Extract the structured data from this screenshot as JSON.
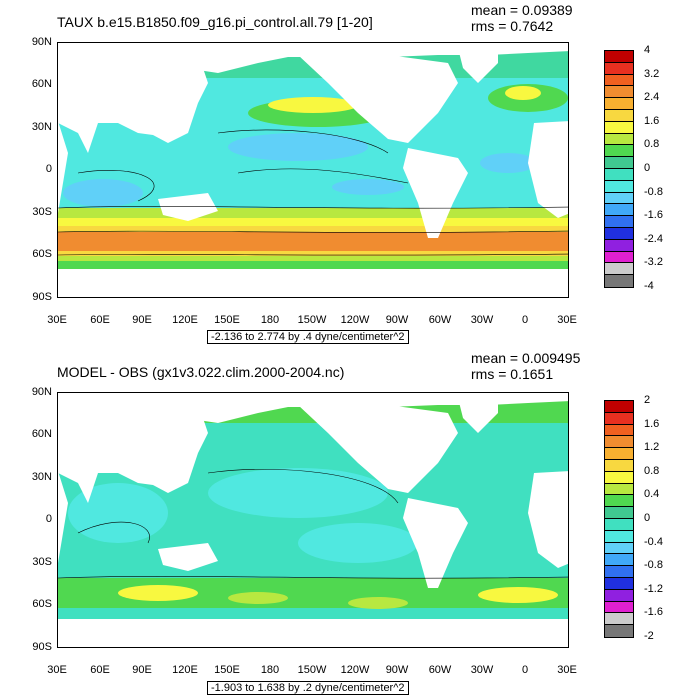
{
  "panels": [
    {
      "title": "TAUX b.e15.B1850.f09_g16.pi_control.all.79 [1-20]",
      "mean": "mean = 0.09389",
      "rms": "rms = 0.7642",
      "caption": "-2.136 to 2.774 by .4 dyne/centimeter^2",
      "colorbar_labels": [
        "4",
        "3.2",
        "2.4",
        "1.6",
        "0.8",
        "0",
        "-0.8",
        "-1.6",
        "-2.4",
        "-3.2",
        "-4"
      ],
      "colorbar_colors": [
        "#c00000",
        "#e83020",
        "#f06020",
        "#f08c30",
        "#f8b030",
        "#f8d840",
        "#f8f840",
        "#b8e840",
        "#50d850",
        "#40c890",
        "#40e0c0",
        "#50e8e0",
        "#60d0f8",
        "#40a8f8",
        "#3070f0",
        "#2030e0",
        "#9020e0",
        "#e020d0",
        "#cccccc",
        "#777777"
      ]
    },
    {
      "title": "MODEL - OBS (gx1v3.022.clim.2000-2004.nc)",
      "mean": "mean = 0.009495",
      "rms": "rms = 0.1651",
      "caption": "-1.903 to 1.638 by .2 dyne/centimeter^2",
      "colorbar_labels": [
        "2",
        "1.6",
        "1.2",
        "0.8",
        "0.4",
        "0",
        "-0.4",
        "-0.8",
        "-1.2",
        "-1.6",
        "-2"
      ],
      "colorbar_colors": [
        "#c00000",
        "#e83020",
        "#f06020",
        "#f08c30",
        "#f8b030",
        "#f8d840",
        "#f8f840",
        "#b8e840",
        "#50d850",
        "#40c890",
        "#40e0c0",
        "#50e8e0",
        "#60d0f8",
        "#40a8f8",
        "#3070f0",
        "#2030e0",
        "#9020e0",
        "#e020d0",
        "#cccccc",
        "#777777"
      ]
    }
  ],
  "axes": {
    "y_ticks": [
      "90N",
      "60N",
      "30N",
      "0",
      "30S",
      "60S",
      "90S"
    ],
    "x_ticks": [
      "30E",
      "60E",
      "90E",
      "120E",
      "150E",
      "180",
      "150W",
      "120W",
      "90W",
      "60W",
      "30W",
      "0",
      "30E"
    ]
  }
}
